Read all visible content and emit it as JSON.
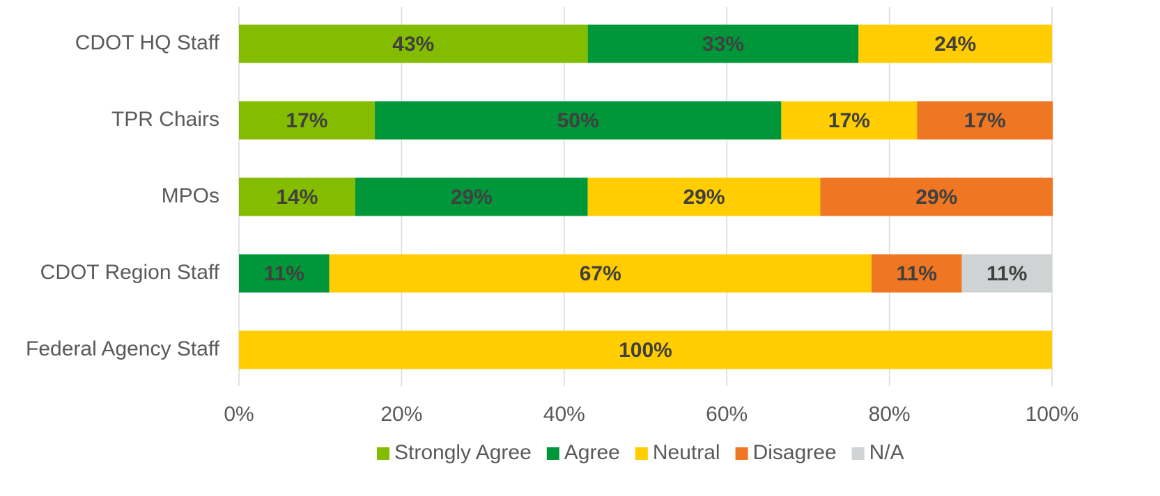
{
  "chart_data": {
    "type": "stacked_bar_horizontal",
    "categories": [
      "CDOT HQ Staff",
      "TPR Chairs",
      "MPOs",
      "CDOT Region Staff",
      "Federal Agency Staff"
    ],
    "series": [
      {
        "name": "Strongly Agree",
        "color": "#84bd00",
        "values": [
          42.9,
          16.7,
          14.3,
          null,
          null
        ],
        "value_labels": [
          "43%",
          "17%",
          "14%",
          null,
          null
        ]
      },
      {
        "name": "Agree",
        "color": "#00973a",
        "values": [
          33.3,
          50,
          28.6,
          11.1,
          null
        ],
        "value_labels": [
          "33%",
          "50%",
          "29%",
          "11%",
          null
        ]
      },
      {
        "name": "Neutral",
        "color": "#ffcd00",
        "values": [
          23.8,
          16.7,
          28.6,
          66.7,
          100
        ],
        "value_labels": [
          "24%",
          "17%",
          "29%",
          "67%",
          "100%"
        ]
      },
      {
        "name": "Disagree",
        "color": "#ef7622",
        "values": [
          null,
          16.7,
          28.6,
          11.1,
          null
        ],
        "value_labels": [
          null,
          "17%",
          "29%",
          "11%",
          null
        ]
      },
      {
        "name": "N/A",
        "color": "#d0d3d4",
        "values": [
          null,
          null,
          null,
          11.1,
          null
        ],
        "value_labels": [
          null,
          null,
          null,
          "11%",
          null
        ]
      }
    ],
    "xlim": [
      0,
      100
    ],
    "xticks": [
      {
        "value": 0,
        "label": "0%"
      },
      {
        "value": 20,
        "label": "20%"
      },
      {
        "value": 40,
        "label": "40%"
      },
      {
        "value": 60,
        "label": "60%"
      },
      {
        "value": 80,
        "label": "80%"
      },
      {
        "value": 100,
        "label": "100%"
      }
    ],
    "grid": true,
    "legend": "bottom"
  }
}
